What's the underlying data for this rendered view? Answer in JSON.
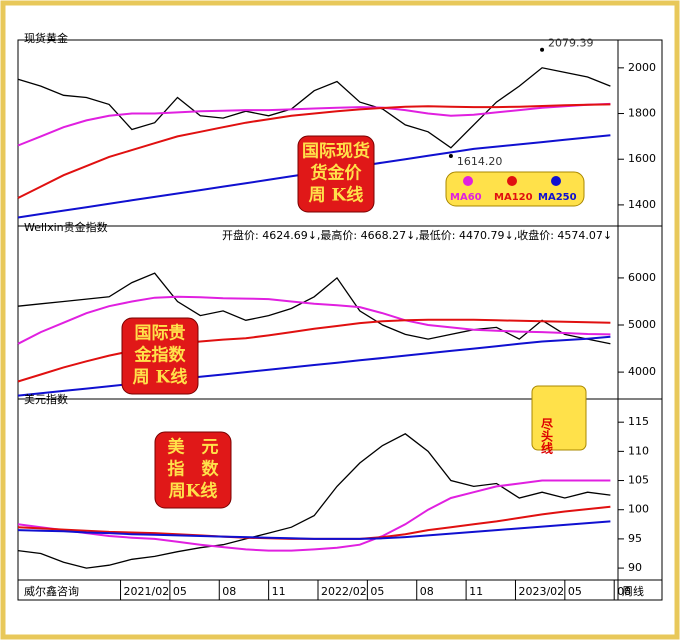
{
  "brand": "威尔鑫咨询",
  "period": "周线",
  "chart_data": [
    {
      "type": "line",
      "title": "现货黄金",
      "x": [
        0,
        6,
        12,
        18,
        24,
        30,
        36,
        42,
        48,
        54,
        60,
        66,
        72,
        78,
        84,
        90,
        96,
        102,
        108,
        114,
        120,
        126,
        132,
        138,
        144,
        150,
        156
      ],
      "series": [
        {
          "color": "#000000",
          "values": [
            1950,
            1920,
            1880,
            1870,
            1840,
            1730,
            1760,
            1870,
            1790,
            1780,
            1810,
            1790,
            1820,
            1900,
            1940,
            1850,
            1820,
            1750,
            1720,
            1650,
            1750,
            1850,
            1920,
            2000,
            1980,
            1960,
            1920
          ]
        },
        {
          "name": "MA60",
          "color": "#e020e0",
          "values": [
            1660,
            1700,
            1740,
            1770,
            1790,
            1800,
            1800,
            1805,
            1810,
            1812,
            1815,
            1815,
            1818,
            1822,
            1825,
            1828,
            1826,
            1815,
            1800,
            1790,
            1795,
            1805,
            1815,
            1825,
            1832,
            1838,
            1842
          ]
        },
        {
          "name": "MA120",
          "color": "#e01010",
          "values": [
            1430,
            1480,
            1530,
            1570,
            1610,
            1640,
            1670,
            1700,
            1720,
            1740,
            1760,
            1775,
            1790,
            1800,
            1810,
            1818,
            1824,
            1830,
            1832,
            1830,
            1828,
            1828,
            1830,
            1833,
            1836,
            1838,
            1840
          ]
        },
        {
          "name": "MA250",
          "color": "#1010d0",
          "values": [
            1345,
            1360,
            1375,
            1390,
            1405,
            1420,
            1435,
            1450,
            1465,
            1480,
            1495,
            1510,
            1525,
            1540,
            1555,
            1570,
            1585,
            1600,
            1615,
            1630,
            1645,
            1655,
            1665,
            1675,
            1685,
            1695,
            1705
          ]
        }
      ],
      "ylim": [
        1312,
        2100
      ],
      "yticks": [
        1400,
        1600,
        1800,
        2000
      ],
      "annotations": [
        {
          "label": "2079.39",
          "value": 2079.39,
          "x": 138
        },
        {
          "label": "1614.20",
          "value": 1614.2,
          "x": 114
        }
      ],
      "label_box": [
        "国际现货",
        "货金价",
        "周 K线"
      ],
      "legend": true
    },
    {
      "type": "line",
      "title": "Wellxin贵金指数",
      "info": "开盘价: 4624.69↓,最高价: 4668.27↓,最低价: 4470.79↓,收盘价: 4574.07↓",
      "x": [
        0,
        6,
        12,
        18,
        24,
        30,
        36,
        42,
        48,
        54,
        60,
        66,
        72,
        78,
        84,
        90,
        96,
        102,
        108,
        114,
        120,
        126,
        132,
        138,
        144,
        150,
        156
      ],
      "series": [
        {
          "color": "#000000",
          "values": [
            5400,
            5450,
            5500,
            5550,
            5600,
            5900,
            6100,
            5500,
            5200,
            5300,
            5100,
            5200,
            5350,
            5600,
            6000,
            5300,
            5000,
            4800,
            4700,
            4800,
            4900,
            4950,
            4700,
            5100,
            4800,
            4700,
            4600
          ]
        },
        {
          "color": "#e020e0",
          "values": [
            4600,
            4850,
            5050,
            5250,
            5400,
            5500,
            5580,
            5600,
            5590,
            5570,
            5560,
            5550,
            5500,
            5450,
            5420,
            5380,
            5250,
            5100,
            5000,
            4950,
            4900,
            4880,
            4860,
            4850,
            4830,
            4810,
            4800
          ]
        },
        {
          "color": "#e01010",
          "values": [
            3800,
            3950,
            4100,
            4230,
            4350,
            4450,
            4530,
            4600,
            4650,
            4690,
            4720,
            4780,
            4850,
            4920,
            4980,
            5040,
            5080,
            5100,
            5110,
            5110,
            5110,
            5100,
            5090,
            5080,
            5070,
            5060,
            5050
          ]
        },
        {
          "color": "#1010d0",
          "values": [
            3500,
            3550,
            3600,
            3650,
            3700,
            3750,
            3800,
            3850,
            3900,
            3950,
            4000,
            4050,
            4100,
            4150,
            4200,
            4250,
            4300,
            4350,
            4400,
            4450,
            4500,
            4550,
            4600,
            4650,
            4680,
            4710,
            4750
          ]
        }
      ],
      "ylim": [
        3450,
        7060
      ],
      "yticks": [
        4000,
        5000,
        6000
      ],
      "label_box": [
        "国际贵",
        "金指数",
        "周 K线"
      ]
    },
    {
      "type": "line",
      "title": "美元指数",
      "x": [
        0,
        6,
        12,
        18,
        24,
        30,
        36,
        42,
        48,
        54,
        60,
        66,
        72,
        78,
        84,
        90,
        96,
        102,
        108,
        114,
        120,
        126,
        132,
        138,
        144,
        150,
        156
      ],
      "series": [
        {
          "color": "#000000",
          "values": [
            93,
            92.5,
            91,
            90,
            90.5,
            91.5,
            92,
            92.8,
            93.5,
            94,
            95,
            96,
            97,
            99,
            104,
            108,
            111,
            113,
            110,
            105,
            104,
            104.5,
            102,
            103,
            102,
            103,
            102.5
          ]
        },
        {
          "color": "#e020e0",
          "values": [
            97.5,
            97,
            96.5,
            96,
            95.5,
            95.2,
            95,
            94.5,
            94,
            93.6,
            93.2,
            93,
            93,
            93.2,
            93.5,
            94,
            95.5,
            97.5,
            100,
            102,
            103,
            104,
            104.5,
            105,
            105,
            105,
            105
          ]
        },
        {
          "color": "#e01010",
          "values": [
            97,
            96.8,
            96.6,
            96.4,
            96.2,
            96.1,
            96,
            95.8,
            95.6,
            95.4,
            95.2,
            95.1,
            95,
            95,
            95,
            95,
            95.3,
            95.8,
            96.5,
            97,
            97.5,
            98,
            98.6,
            99.2,
            99.7,
            100.1,
            100.5
          ]
        },
        {
          "color": "#1010d0",
          "values": [
            96.5,
            96.4,
            96.3,
            96.1,
            96,
            95.8,
            95.7,
            95.6,
            95.5,
            95.4,
            95.3,
            95.2,
            95.1,
            95,
            95,
            95,
            95.1,
            95.3,
            95.6,
            95.9,
            96.2,
            96.5,
            96.8,
            97.1,
            97.4,
            97.7,
            98
          ]
        }
      ],
      "ylim": [
        88.3,
        118.8
      ],
      "yticks": [
        90,
        95,
        100,
        105,
        110,
        115
      ],
      "xlim": [
        0,
        158
      ],
      "xticks": [
        {
          "value": 27,
          "label": "2021/02"
        },
        {
          "value": 40,
          "label": "05"
        },
        {
          "value": 53,
          "label": "08"
        },
        {
          "value": 66,
          "label": "11"
        },
        {
          "value": 79,
          "label": "2022/02"
        },
        {
          "value": 92,
          "label": "05"
        },
        {
          "value": 105,
          "label": "08"
        },
        {
          "value": 118,
          "label": "11"
        },
        {
          "value": 131,
          "label": "2023/02"
        },
        {
          "value": 144,
          "label": "05"
        },
        {
          "value": 157,
          "label": "08"
        }
      ],
      "label_box": [
        "美　元",
        "指　数",
        "周K线"
      ],
      "note": "尽头线"
    }
  ]
}
